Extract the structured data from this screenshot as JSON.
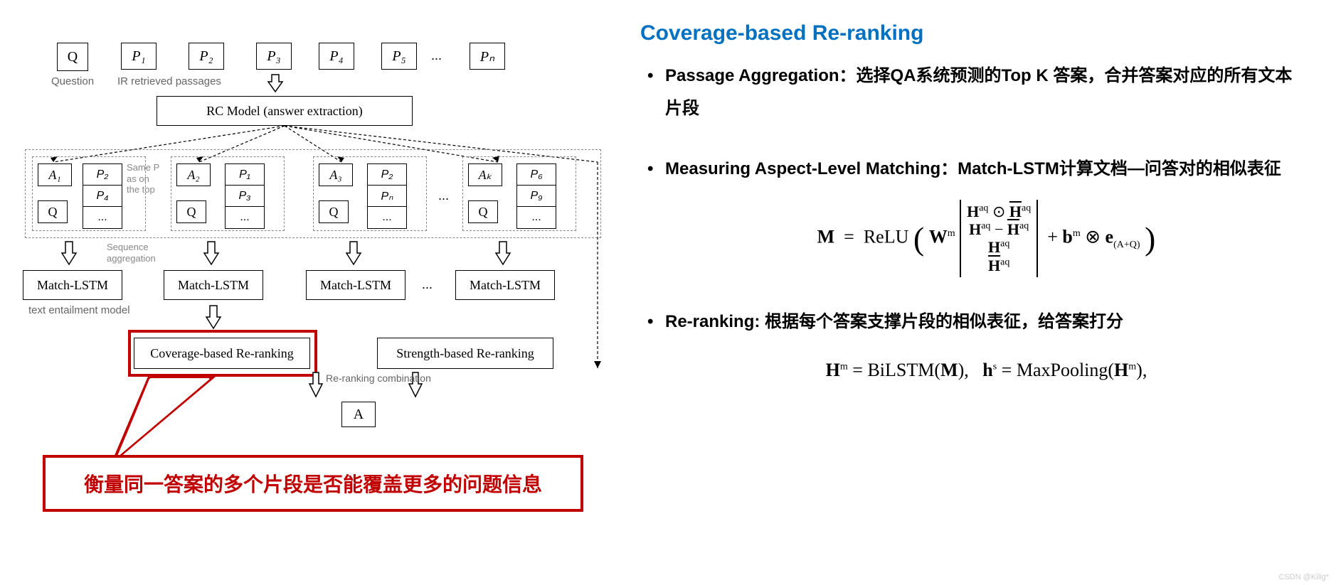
{
  "title": {
    "text": "Coverage-based Re-ranking",
    "color": "#0070c0"
  },
  "bullets": [
    {
      "label": "Passage Aggregation：选择QA系统预测的Top K 答案，合并答案对应的所有文本片段"
    },
    {
      "label": "Measuring Aspect-Level Matching：Match-LSTM计算文档—问答对的相似表征"
    },
    {
      "label": "Re-ranking: 根据每个答案支撑片段的相似表征，给答案打分"
    }
  ],
  "formula1_html": "<b>M</b> &nbsp;=&nbsp; ReLU <span style='font-size:46px;vertical-align:middle'>(</span> <b>W</b><sup>m</sup> <span style='display:inline-block;vertical-align:middle;border-left:2px solid #000;border-right:2px solid #000;padding:4px 8px;line-height:1.15;font-size:22px;'><b>H</b><sup>aq</sup> ⊙ <span style='text-decoration:overline'><b>H</b></span><sup>aq</sup><br><b>H</b><sup>aq</sup> − <span style='text-decoration:overline'><b>H</b></span><sup>aq</sup><br><b>H</b><sup>aq</sup><br><span style='text-decoration:overline'><b>H</b></span><sup>aq</sup></span> &nbsp;+ <b>b</b><sup>m</sup> ⊗ <b>e</b><sub>(A+Q)</sub> <span style='font-size:46px;vertical-align:middle'>)</span>",
  "formula2_html": "<b>H</b><sup>m</sup> = BiLSTM(<b>M</b>),&nbsp;&nbsp; <b>h</b><sup>s</sup> = MaxPooling(<b>H</b><sup>m</sup>),",
  "diagram": {
    "input_row": {
      "q_label": "Q",
      "q_sub": "Question",
      "passages": [
        "P₁",
        "P₂",
        "P₃",
        "P₄",
        "P₅",
        "Pₙ"
      ],
      "passages_sub": "IR retrieved passages",
      "ellipsis": "..."
    },
    "rc_model": "RC Model (answer extraction)",
    "groups": [
      {
        "a": "A₁",
        "q": "Q",
        "plist": [
          "P₂",
          "P₄",
          "..."
        ]
      },
      {
        "a": "A₂",
        "q": "Q",
        "plist": [
          "P₁",
          "P₃",
          "..."
        ]
      },
      {
        "a": "A₃",
        "q": "Q",
        "plist": [
          "P₂",
          "Pₙ",
          "..."
        ]
      },
      {
        "a": "Aₖ",
        "q": "Q",
        "plist": [
          "P₆",
          "P₉",
          "..."
        ]
      }
    ],
    "note_same_p": "Same P as on the top",
    "note_seq_agg": "Sequence aggregation",
    "match_lstm": "Match-LSTM",
    "match_lstm_sub": "text entailment model",
    "coverage_box": "Coverage-based Re-ranking",
    "strength_box": "Strength-based Re-ranking",
    "rerank_comb": "Re-ranking combination",
    "final_a": "A",
    "callout": "衡量同一答案的多个片段是否能覆盖更多的问题信息"
  },
  "watermark": "CSDN @Kilig*",
  "colors": {
    "red": "#c00000",
    "blue": "#0070c0",
    "border": "#000000",
    "dashed": "#888888",
    "bg": "#ffffff"
  }
}
